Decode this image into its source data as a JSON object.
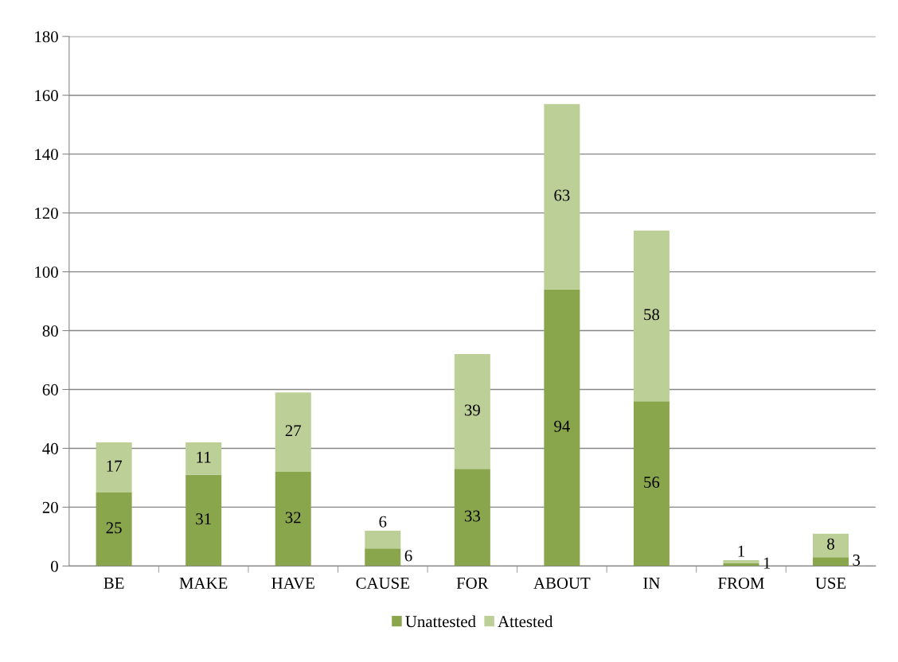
{
  "chart_data": {
    "type": "bar",
    "stacked": true,
    "categories": [
      "BE",
      "MAKE",
      "HAVE",
      "CAUSE",
      "FOR",
      "ABOUT",
      "IN",
      "FROM",
      "USE"
    ],
    "series": [
      {
        "name": "Unattested",
        "color": "#8aa64c",
        "values": [
          25,
          31,
          32,
          6,
          33,
          94,
          56,
          1,
          3
        ]
      },
      {
        "name": "Attested",
        "color": "#bccf96",
        "values": [
          17,
          11,
          27,
          6,
          39,
          63,
          58,
          1,
          8
        ]
      }
    ],
    "ylim": [
      0,
      180
    ],
    "yticks": [
      0,
      20,
      40,
      60,
      80,
      100,
      120,
      140,
      160,
      180
    ],
    "grid": "y",
    "legend": "bottom",
    "data_labels": true
  }
}
